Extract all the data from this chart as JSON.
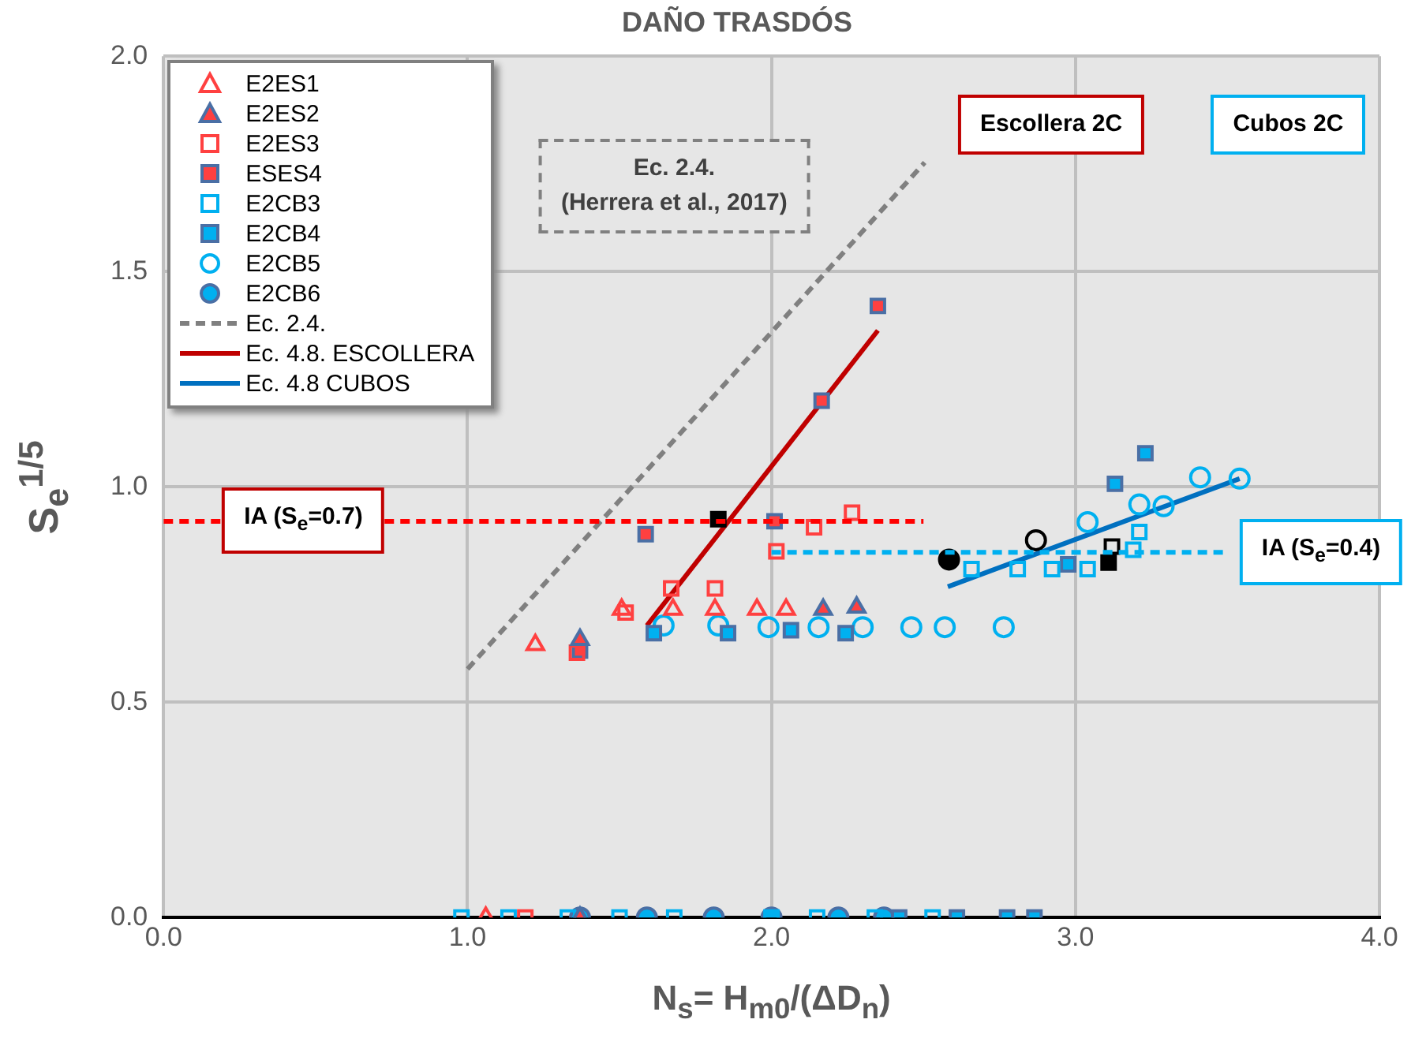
{
  "chart_data": {
    "type": "scatter",
    "title": "DAÑO TRASDÓS",
    "xlabel": "N$_{s}$= H$_{m0}$/(ΔD$_{n}$)",
    "ylabel": "S$_{e}$$^{1/5}$",
    "xlim": [
      0,
      4
    ],
    "ylim": [
      0,
      2
    ],
    "xticks": [
      {
        "value": 0,
        "label": "0.0"
      },
      {
        "value": 1,
        "label": "1.0"
      },
      {
        "value": 2,
        "label": "2.0"
      },
      {
        "value": 3,
        "label": "3.0"
      },
      {
        "value": 4,
        "label": "4.0"
      }
    ],
    "yticks": [
      {
        "value": 0,
        "label": "0.0"
      },
      {
        "value": 0.5,
        "label": "0.5"
      },
      {
        "value": 1,
        "label": "1.0"
      },
      {
        "value": 1.5,
        "label": "1.5"
      },
      {
        "value": 2,
        "label": "2.0"
      }
    ],
    "grid": true,
    "legend": "top left",
    "annotations": [
      "Ec. 2.4.",
      "(Herrera et al., 2017)",
      "Escollera 2C",
      "Cubos 2C",
      "IA (S$_{e}$=0.7)",
      "IA (S$_{e}$=0.4)"
    ],
    "series": [
      {
        "type": "line",
        "color": "#ff0000",
        "line_style": "dashed",
        "marker": "none",
        "x": [
          0,
          2.5
        ],
        "values": [
          0.92,
          0.92
        ]
      },
      {
        "type": "line",
        "color": "#00b0f0",
        "line_style": "dashed",
        "marker": "none",
        "x": [
          2.0,
          3.5
        ],
        "values": [
          0.848,
          0.848
        ]
      },
      {
        "name": "E2ES1",
        "type": "scatter",
        "marker": "triangle",
        "color": "#ff4040",
        "x": [
          1.223,
          1.507,
          1.676,
          1.814,
          1.952,
          2.048,
          1.06
        ],
        "values": [
          0.633,
          0.715,
          0.715,
          0.715,
          0.715,
          0.715,
          0
        ]
      },
      {
        "name": "E2ES2",
        "type": "scatter",
        "marker": "triangle",
        "color": "#ff4040",
        "x": [
          1.37,
          2.17,
          2.28,
          1.37
        ],
        "values": [
          0.645,
          0.715,
          0.72,
          0
        ]
      },
      {
        "name": "E2ES3",
        "type": "scatter",
        "marker": "square",
        "color": "#ff4040",
        "x": [
          1.36,
          1.52,
          1.67,
          1.814,
          2.016,
          2.14,
          2.265,
          1.19
        ],
        "values": [
          0.615,
          0.708,
          0.764,
          0.764,
          0.85,
          0.906,
          0.94,
          0
        ]
      },
      {
        "name": "ESES4",
        "type": "scatter",
        "marker": "square",
        "color": "#ff4040",
        "x": [
          1.37,
          1.586,
          2.01,
          2.165,
          2.35
        ],
        "values": [
          0.62,
          0.89,
          0.92,
          1.2,
          1.42
        ]
      },
      {
        "name": "E2CB3",
        "type": "scatter",
        "marker": "square",
        "color": "#00b0f0",
        "x": [
          2.658,
          2.81,
          2.923,
          3.04,
          3.19,
          3.21,
          0.98,
          1.135,
          1.33,
          1.5,
          1.68,
          2.0,
          2.15,
          2.34,
          2.53
        ],
        "values": [
          0.809,
          0.809,
          0.809,
          0.809,
          0.854,
          0.895,
          0,
          0,
          0,
          0,
          0,
          0,
          0,
          0,
          0
        ]
      },
      {
        "name": "E2CB4",
        "type": "scatter",
        "marker": "square",
        "color": "#00b0f0",
        "x": [
          1.613,
          1.857,
          2.064,
          2.244,
          2.976,
          3.13,
          3.23,
          2.42,
          2.61,
          2.775,
          2.865
        ],
        "values": [
          0.66,
          0.66,
          0.667,
          0.66,
          0.82,
          1.007,
          1.078,
          0,
          0,
          0,
          0
        ]
      },
      {
        "name": "E2CB5",
        "type": "scatter",
        "marker": "circle",
        "color": "#00b0f0",
        "x": [
          1.645,
          1.825,
          1.99,
          2.155,
          2.3,
          2.46,
          2.57,
          2.764,
          3.04,
          3.21,
          3.29,
          3.41,
          3.54
        ],
        "values": [
          0.678,
          0.678,
          0.674,
          0.674,
          0.674,
          0.674,
          0.674,
          0.674,
          0.918,
          0.959,
          0.955,
          1.022,
          1.019
        ]
      },
      {
        "name": "E2CB6",
        "type": "scatter",
        "marker": "circle",
        "color": "#00b0f0",
        "x": [
          1.37,
          1.59,
          1.81,
          2.0,
          2.22,
          2.37
        ],
        "values": [
          0,
          0,
          0,
          0,
          0,
          0
        ]
      },
      {
        "type": "scatter",
        "marker": "square",
        "color": "#000000",
        "x": [
          1.825,
          3.109
        ],
        "values": [
          0.925,
          0.824
        ]
      },
      {
        "type": "scatter",
        "marker": "circle",
        "color": "#000000",
        "x": [
          2.584
        ],
        "values": [
          0.831
        ]
      },
      {
        "type": "scatter",
        "marker": "circle",
        "color": "#000000",
        "x": [
          2.87
        ],
        "values": [
          0.876
        ]
      },
      {
        "type": "scatter",
        "marker": "square",
        "color": "#000000",
        "x": [
          3.12
        ],
        "values": [
          0.861
        ]
      },
      {
        "name": "Ec. 2.4.",
        "type": "line",
        "color": "#808080",
        "line_style": "dashed",
        "marker": "none",
        "x": [
          1.0,
          2.504
        ],
        "values": [
          0.577,
          1.753
        ]
      },
      {
        "name": "Ec. 4.8. ESCOLLERA",
        "type": "line",
        "color": "#c00000",
        "line_style": "solid",
        "marker": "none",
        "x": [
          1.59,
          2.35
        ],
        "values": [
          0.678,
          1.363
        ]
      },
      {
        "name": "Ec. 4.8 CUBOS",
        "type": "line",
        "color": "#0070c0",
        "line_style": "solid",
        "marker": "none",
        "x": [
          2.58,
          3.54
        ],
        "values": [
          0.768,
          1.019
        ]
      }
    ]
  }
}
